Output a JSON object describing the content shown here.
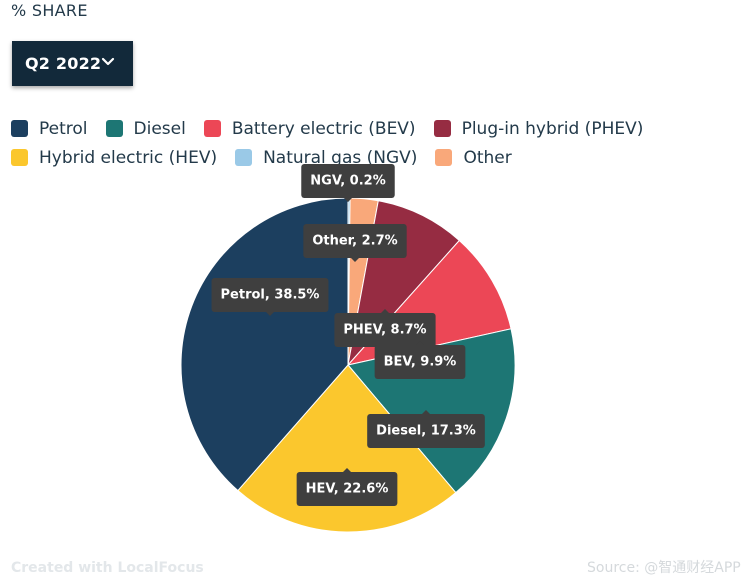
{
  "header": {
    "share_label": "% SHARE"
  },
  "period_selector": {
    "selected": "Q2 2022"
  },
  "footer": {
    "credit": "Created with LocalFocus",
    "source": "Source: @智通财经APP"
  },
  "colors": {
    "petrol": "#1c3f5f",
    "diesel": "#1d7674",
    "bev": "#ec4756",
    "phev": "#962c42",
    "hev": "#fbc72d",
    "ngv": "#9ac9e7",
    "other": "#f9a87a",
    "tooltip_bg": "#3f3f3f"
  },
  "chart_data": {
    "type": "pie",
    "legend": [
      {
        "key": "petrol",
        "label": "Petrol"
      },
      {
        "key": "diesel",
        "label": "Diesel"
      },
      {
        "key": "bev",
        "label": "Battery electric (BEV)"
      },
      {
        "key": "phev",
        "label": "Plug-in hybrid (PHEV)"
      },
      {
        "key": "hev",
        "label": "Hybrid electric (HEV)"
      },
      {
        "key": "ngv",
        "label": "Natural gas (NGV)"
      },
      {
        "key": "other",
        "label": "Other"
      }
    ],
    "legend_placement": "top",
    "slices": [
      {
        "key": "ngv",
        "label": "NGV, 0.2%",
        "value": 0.2
      },
      {
        "key": "other",
        "label": "Other, 2.7%",
        "value": 2.7
      },
      {
        "key": "phev",
        "label": "PHEV, 8.7%",
        "value": 8.7
      },
      {
        "key": "bev",
        "label": "BEV, 9.9%",
        "value": 9.9
      },
      {
        "key": "diesel",
        "label": "Diesel, 17.3%",
        "value": 17.3
      },
      {
        "key": "hev",
        "label": "HEV, 22.6%",
        "value": 22.6
      },
      {
        "key": "petrol",
        "label": "Petrol, 38.5%",
        "value": 38.5
      }
    ]
  }
}
